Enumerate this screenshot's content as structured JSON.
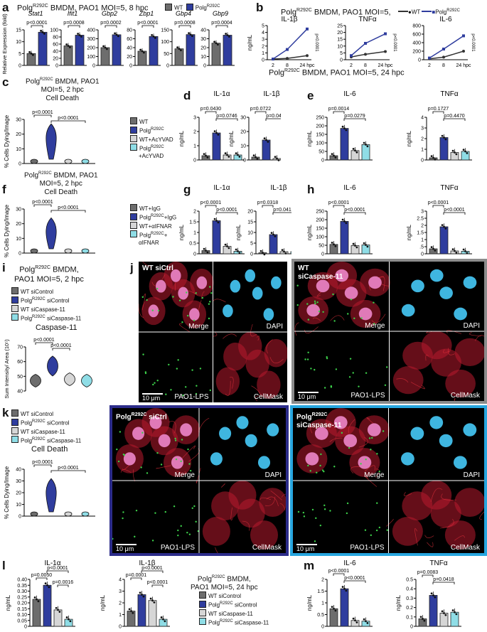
{
  "panels": {
    "a": {
      "label": "a",
      "title": "Polg",
      "title_sup": "R292C",
      "title_rest": " BMDM, PAO1 MOI=5, 8 hpc",
      "legend": [
        "WT",
        "Polg"
      ],
      "legend_sup": "R292C",
      "ylabel": "Relative Expression (fold)",
      "genes": [
        {
          "name": "Stat1",
          "p": "p<0.0001",
          "ticks": [
            "0",
            "5",
            "10",
            "15"
          ]
        },
        {
          "name": "Ifit1",
          "p": "p=0.0008",
          "ticks": [
            "0",
            "20",
            "40",
            "60",
            "80",
            "100"
          ]
        },
        {
          "name": "Gbp2",
          "p": "p=0.0002",
          "ticks": [
            "0",
            "100",
            "200",
            "300",
            "400"
          ]
        },
        {
          "name": "Zbp1",
          "p": "p<0.0001",
          "ticks": [
            "0",
            "20",
            "40",
            "60",
            "80"
          ]
        },
        {
          "name": "Gbp4",
          "p": "p=0.0008",
          "ticks": [
            "0",
            "50",
            "100",
            "150"
          ]
        },
        {
          "name": "Gbp9",
          "p": "p=0.0004",
          "ticks": [
            "0",
            "10",
            "20",
            "30",
            "40"
          ]
        }
      ]
    },
    "b": {
      "label": "b",
      "title": "Polg",
      "title_sup": "R292C",
      "title_rest": " BMDM, PAO1 MOI=5,",
      "legend": [
        "WT",
        "Polg"
      ],
      "legend_sup": "R292C",
      "ylabel": "ng/mL",
      "charts": [
        {
          "name": "IL-1β",
          "p": "p<0.0001",
          "ticks": [
            "0",
            "1",
            "2",
            "3",
            "4",
            "5"
          ],
          "x": [
            "2",
            "8",
            "24 hpc"
          ]
        },
        {
          "name": "TNFα",
          "p": "p<0.0001",
          "ticks": [
            "0",
            "5",
            "10",
            "15",
            "20",
            "25"
          ],
          "x": [
            "2",
            "8",
            "24 hpc"
          ]
        },
        {
          "name": "IL-6",
          "p": "p<0.0001",
          "ticks": [
            "0",
            "200",
            "400",
            "600",
            "800"
          ],
          "x": [
            "2",
            "8",
            "24 hpc"
          ]
        }
      ]
    },
    "c": {
      "label": "c",
      "title1": "Polg",
      "sup": "R292C",
      "title1_rest": " BMDM, PAO1",
      "title2": "MOI=5, 2 hpc",
      "title3": "Cell Death",
      "ylabel": "% Cells Dying/Image",
      "p1": "p<0.0001",
      "p2": "p<0.0001",
      "ticks": [
        "0",
        "10",
        "20",
        "30"
      ],
      "legend": [
        "WT",
        "Polg",
        "WT+AcYVAD",
        "Polg"
      ],
      "legend_sups": [
        "",
        "R292C",
        "",
        "R292C"
      ],
      "legend4_extra": "+AcYVAD"
    },
    "d": {
      "label": "d",
      "charts": [
        {
          "name": "IL-1α",
          "p1": "p=0.0430",
          "p2": "p=0.0746",
          "ticks": [
            "0",
            "1",
            "2",
            "3"
          ]
        },
        {
          "name": "IL-1β",
          "p1": "p=0.0722",
          "p2": "p=0.0447",
          "ticks": [
            "0",
            "10",
            "20",
            "30"
          ]
        }
      ],
      "ylabel": "ng/mL"
    },
    "e": {
      "label": "e",
      "charts": [
        {
          "name": "IL-6",
          "p1": "p=0.0014",
          "p2": "p=0.0279",
          "ticks": [
            "0",
            "50",
            "100",
            "150",
            "200",
            "250"
          ]
        },
        {
          "name": "TNFα",
          "p1": "p=0.1727",
          "p2": "p=0.4470",
          "ticks": [
            "0",
            "1",
            "2",
            "3",
            "4"
          ]
        }
      ],
      "ylabel": "ng/mL"
    },
    "mid_title": {
      "text": "Polg",
      "sup": "R292C",
      "rest": " BMDM, PAO1 MOI=5, 24 hpc"
    },
    "f": {
      "label": "f",
      "title1": "Polg",
      "sup": "R292C",
      "title1_rest": " BMDM, PAO1",
      "title2": "MOI=5, 2 hpc",
      "title3": "Cell Death",
      "ylabel": "% Cells Dying/Image",
      "p1": "p<0.0001",
      "p2": "p<0.0001",
      "ticks": [
        "0",
        "10",
        "20",
        "30"
      ],
      "legend": [
        "WT+IgG",
        "Polg",
        "WT+αIFNAR",
        "Polg"
      ],
      "legend_sups": [
        "",
        "R292C",
        "",
        "R292C"
      ],
      "legend_extras": [
        "",
        "+IgG",
        "",
        "+"
      ],
      "legend4_line2": "αIFNAR"
    },
    "g": {
      "label": "g",
      "charts": [
        {
          "name": "IL-1α",
          "p1": "p<0.0001",
          "p2": "p<0.0001",
          "ticks": [
            "0",
            "0.5",
            "1",
            "1.5",
            "2"
          ]
        },
        {
          "name": "IL-1β",
          "p1": "p=0.0318",
          "p2": "p=0.0410",
          "ticks": [
            "0",
            "5",
            "10",
            "15",
            "20"
          ]
        }
      ],
      "ylabel": "ng/mL"
    },
    "h": {
      "label": "h",
      "charts": [
        {
          "name": "IL-6",
          "p1": "p<0.0001",
          "p2": "p<0.0001",
          "ticks": [
            "0",
            "50",
            "100",
            "150",
            "200",
            "250"
          ]
        },
        {
          "name": "TNFα",
          "p1": "p<0.0001",
          "p2": "p<0.0001",
          "ticks": [
            "0",
            ".5",
            "1",
            "1.5",
            "2",
            "2.5",
            "3"
          ]
        }
      ],
      "ylabel": "ng/mL"
    },
    "i": {
      "label": "i",
      "title1": "Polg",
      "sup": "R292C",
      "title1_rest": " BMDM,",
      "title2": "PAO1 MOI=5, 2 hpc",
      "legend": [
        "WT siControl",
        "Polg",
        "WT siCaspase-11",
        "Polg"
      ],
      "legend_sups": [
        "",
        "R292C",
        "",
        "R292C"
      ],
      "legend_extras": [
        "",
        "siControl",
        "",
        "siCaspase-11"
      ],
      "chart_title": "Caspase-11",
      "ylabel": "Sum Intensity/ Area (10⁵)",
      "p1": "p<0.0001",
      "p2": "p<0.0001",
      "ticks": [
        "40",
        "50",
        "60",
        "70"
      ]
    },
    "j": {
      "label": "j",
      "left_tag": "WT siCtrl",
      "right_tag1": "WT",
      "right_tag2": "siCaspase-11",
      "tiles": [
        "Merge",
        "DAPI",
        "PAO1-LPS",
        "CellMask"
      ],
      "scale": "10 μm"
    },
    "k": {
      "label": "k",
      "legend": [
        "WT siControl",
        "Polg",
        "WT siCaspase-11",
        "Polg"
      ],
      "legend_sups": [
        "",
        "R292C",
        "",
        "R292C"
      ],
      "legend_extras": [
        "",
        "siControl",
        "",
        "siCaspase-11"
      ],
      "chart_title": "Cell Death",
      "ylabel": "% Cells Dying/Image",
      "p1": "p<0.0001",
      "p2": "p<0.0001",
      "ticks": [
        "0",
        "10",
        "20",
        "30",
        "40"
      ],
      "left_tag1": "Polg",
      "left_sup": "R292C",
      "left_tag2": " siCtrl",
      "right_tag1": "Polg",
      "right_sup": "R292C",
      "right_tag2": "siCaspase-11",
      "tiles": [
        "Merge",
        "DAPI",
        "PAO1-LPS",
        "CellMask"
      ],
      "scale": "10 μm"
    },
    "l": {
      "label": "l",
      "charts": [
        {
          "name": "IL-1α",
          "pa": "p=0.0050",
          "pb": "p<0.0001",
          "pc": "p=0.0016",
          "ticks": [
            "0",
            "0.05",
            "0.10",
            "0.15",
            "0.20",
            "0.25",
            "0.30",
            "0.35",
            "0.40"
          ]
        },
        {
          "name": "IL-1β",
          "pa": "p=0.0001",
          "pb": "p<0.0001",
          "pc": "p<0.0001",
          "ticks": [
            "0",
            "1",
            "2",
            "3",
            "4"
          ]
        }
      ],
      "ylabel": "ng/mL",
      "title1": "Polg",
      "sup": "R292C",
      "title1_rest": " BMDM,",
      "title2": "PAO1 MOI=5, 24 hpc",
      "legend": [
        "WT siControl",
        "Polg",
        "WT siCaspase-11",
        "Polg"
      ],
      "legend_sups": [
        "",
        "R292C",
        "",
        "R292C"
      ],
      "legend_extras": [
        "",
        "siControl",
        "",
        "siCaspase-11"
      ]
    },
    "m": {
      "label": "m",
      "charts": [
        {
          "name": "IL-6",
          "p1": "p<0.0001",
          "p2": "p<0.0001",
          "ticks": [
            "0",
            "0.5",
            "1",
            "1.5",
            "2"
          ]
        },
        {
          "name": "TNFα",
          "pa": "p=0.0083",
          "pb": "p=0.0418",
          "ticks": [
            "0",
            "0.1",
            "0.2",
            "0.3",
            "0.4",
            "0.5"
          ]
        }
      ],
      "ylabel": "ng/mL"
    }
  },
  "colors": {
    "wt": "#6d6d6d",
    "polg": "#2f3d9e",
    "wt_treat": "#d6d6d6",
    "polg_treat": "#8fdde6",
    "frame_gray": "#8c8c8c",
    "frame_navy": "#2c2c8a",
    "frame_cyan": "#27a6df"
  },
  "chart_data": [
    {
      "type": "bar",
      "panel": "a",
      "categories": [
        "Stat1",
        "Ifit1",
        "Gbp2",
        "Zbp1",
        "Gbp4",
        "Gbp9"
      ],
      "series": [
        {
          "name": "WT",
          "values": [
            5,
            55,
            200,
            32,
            70,
            25
          ]
        },
        {
          "name": "Polg R292C",
          "values": [
            14,
            85,
            345,
            65,
            130,
            34
          ]
        }
      ]
    },
    {
      "type": "line",
      "panel": "b",
      "x": [
        "2",
        "8",
        "24 hpc"
      ],
      "series": [
        {
          "name": "WT",
          "IL-1β": [
            0.1,
            0.2,
            0.6
          ],
          "TNFα": [
            2,
            4,
            6
          ],
          "IL-6": [
            20,
            60,
            200
          ]
        },
        {
          "name": "Polg R292C",
          "IL-1β": [
            0.1,
            1.5,
            4.5
          ],
          "TNFα": [
            3,
            12,
            19
          ],
          "IL-6": [
            40,
            250,
            560
          ]
        }
      ]
    },
    {
      "type": "bar",
      "panel": "d",
      "categories": [
        "WT",
        "Polg R292C",
        "WT+AcYVAD",
        "Polg R292C+AcYVAD"
      ],
      "series": [
        {
          "name": "IL-1α",
          "values": [
            0.3,
            1.9,
            0.35,
            0.35
          ]
        },
        {
          "name": "IL-1β",
          "values": [
            2,
            14,
            1,
            1
          ]
        }
      ]
    },
    {
      "type": "bar",
      "panel": "e",
      "categories": [
        "WT",
        "Polg R292C",
        "WT+AcYVAD",
        "Polg R292C+AcYVAD"
      ],
      "series": [
        {
          "name": "IL-6",
          "values": [
            25,
            185,
            55,
            90
          ]
        },
        {
          "name": "TNFα",
          "values": [
            0.2,
            2.1,
            0.7,
            0.8
          ]
        }
      ]
    },
    {
      "type": "bar",
      "panel": "g",
      "categories": [
        "WT+IgG",
        "Polg R292C+IgG",
        "WT+αIFNAR",
        "Polg R292C+αIFNAR"
      ],
      "series": [
        {
          "name": "IL-1α",
          "values": [
            0.15,
            1.55,
            0.35,
            0.12
          ]
        },
        {
          "name": "IL-1β",
          "values": [
            0.5,
            9,
            1,
            1
          ]
        }
      ]
    },
    {
      "type": "bar",
      "panel": "h",
      "categories": [
        "WT+IgG",
        "Polg R292C+IgG",
        "WT+αIFNAR",
        "Polg R292C+αIFNAR"
      ],
      "series": [
        {
          "name": "IL-6",
          "values": [
            55,
            190,
            48,
            52
          ]
        },
        {
          "name": "TNFα",
          "values": [
            0.35,
            1.9,
            0.2,
            0.18
          ]
        }
      ]
    },
    {
      "type": "bar",
      "panel": "l",
      "categories": [
        "WT siControl",
        "Polg R292C siControl",
        "WT siCaspase-11",
        "Polg R292C siCaspase-11"
      ],
      "series": [
        {
          "name": "IL-1α",
          "values": [
            0.23,
            0.35,
            0.14,
            0.06
          ]
        },
        {
          "name": "IL-1β",
          "values": [
            1.3,
            2.7,
            2.2,
            0.6
          ]
        }
      ]
    },
    {
      "type": "bar",
      "panel": "m",
      "categories": [
        "WT siControl",
        "Polg R292C siControl",
        "WT siCaspase-11",
        "Polg R292C siCaspase-11"
      ],
      "series": [
        {
          "name": "IL-6",
          "values": [
            0.75,
            1.6,
            0.25,
            0.22
          ]
        },
        {
          "name": "TNFα",
          "values": [
            0.08,
            0.33,
            0.14,
            0.15
          ]
        }
      ]
    }
  ]
}
